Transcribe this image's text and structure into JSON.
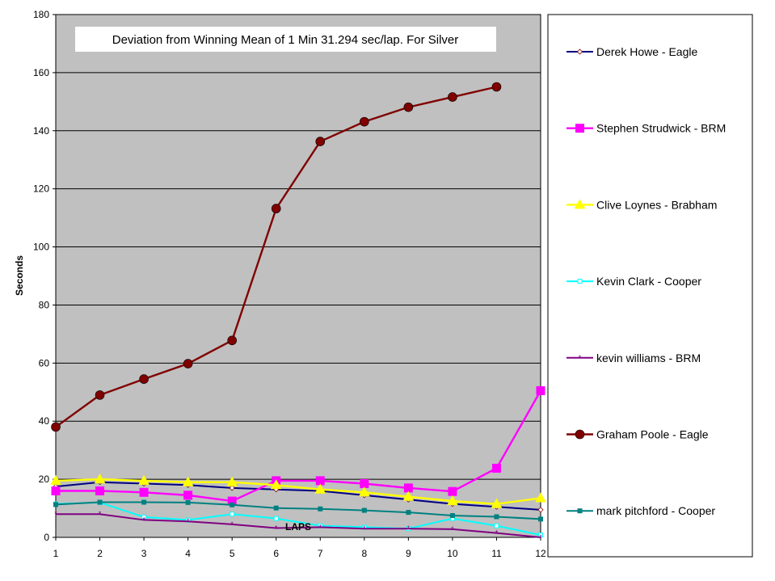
{
  "chart_data": {
    "type": "line",
    "title": "Deviation from Winning Mean of 1 Min 31.294 sec/lap. For Silver",
    "xlabel": "LAPS",
    "ylabel": "Seconds",
    "x": [
      1,
      2,
      3,
      4,
      5,
      6,
      7,
      8,
      9,
      10,
      11,
      12
    ],
    "xlim": [
      1,
      12
    ],
    "ylim": [
      0,
      180
    ],
    "y_ticks": [
      0,
      20,
      40,
      60,
      80,
      100,
      120,
      140,
      160,
      180
    ],
    "grid": "horizontal",
    "legend_position": "right",
    "plot_background": "#c0c0c0",
    "series": [
      {
        "name": "Derek Howe - Eagle",
        "color": "#000080",
        "marker": "diamond",
        "marker_size": "small",
        "values": [
          17.5,
          19,
          18.5,
          18,
          17,
          16.5,
          16,
          14.5,
          13,
          11.5,
          10.5,
          9.5
        ]
      },
      {
        "name": "Stephen Strudwick - BRM",
        "color": "#ff00ff",
        "marker": "square",
        "marker_size": "large",
        "values": [
          16,
          16,
          15.5,
          14.5,
          12.5,
          19.5,
          19.5,
          18.5,
          17,
          15.8,
          23.8,
          50.5
        ]
      },
      {
        "name": "Clive Loynes - Brabham",
        "color": "#ffff00",
        "marker": "triangle",
        "marker_size": "large",
        "values": [
          19.5,
          20,
          19.5,
          19,
          19,
          18,
          16.5,
          15.5,
          14,
          12.5,
          11.5,
          13.5
        ]
      },
      {
        "name": "Kevin Clark - Cooper",
        "color": "#00ffff",
        "marker": "square-open",
        "marker_size": "small",
        "values": [
          11.5,
          12,
          7,
          6,
          8,
          6.5,
          4,
          3.5,
          3,
          6.5,
          4,
          0.8
        ]
      },
      {
        "name": "kevin williams - BRM",
        "color": "#800080",
        "marker": "star",
        "marker_size": "small",
        "values": [
          8,
          8,
          6,
          5.5,
          4.5,
          3.2,
          3.5,
          3,
          3,
          2.8,
          1.5,
          0
        ]
      },
      {
        "name": "Graham Poole - Eagle",
        "color": "#800000",
        "marker": "circle",
        "marker_size": "large",
        "values": [
          38,
          49,
          54.5,
          59.8,
          67.8,
          113.2,
          136.3,
          143.1,
          148.1,
          151.6,
          155.1,
          null
        ]
      },
      {
        "name": "mark pitchford - Cooper",
        "color": "#008080",
        "marker": "square",
        "marker_size": "small",
        "values": [
          11.3,
          12.1,
          12.1,
          12,
          11.2,
          10.1,
          9.8,
          9.3,
          8.6,
          7.5,
          7.1,
          6.3
        ]
      }
    ]
  }
}
